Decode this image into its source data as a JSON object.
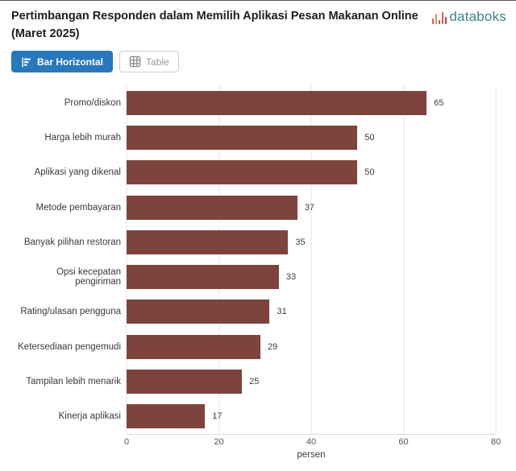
{
  "header": {
    "title": "Pertimbangan Responden dalam Memilih Aplikasi Pesan Makanan Online (Maret 2025)",
    "brand": "databoks"
  },
  "toolbar": {
    "bar_horizontal_label": "Bar Horizontal",
    "table_label": "Table"
  },
  "chart_data": {
    "type": "bar",
    "orientation": "horizontal",
    "title": "Pertimbangan Responden dalam Memilih Aplikasi Pesan Makanan Online (Maret 2025)",
    "categories": [
      "Promo/diskon",
      "Harga lebih murah",
      "Aplikasi yang dikenal",
      "Metode pembayaran",
      "Banyak pilihan restoran",
      "Opsi kecepatan pengiriman",
      "Rating/ulasan pengguna",
      "Ketersediaan pengemudi",
      "Tampilan lebih menarik",
      "Kinerja aplikasi"
    ],
    "values": [
      65,
      50,
      50,
      37,
      35,
      33,
      31,
      29,
      25,
      17
    ],
    "xlabel": "persen",
    "ylabel": "",
    "xlim": [
      0,
      80
    ],
    "xticks": [
      0,
      20,
      40,
      60,
      80
    ],
    "grid": true,
    "legend": "none",
    "bar_color": "#7E443C"
  },
  "colors": {
    "accent_blue": "#2878BE",
    "brand_teal": "#3B8486",
    "bar_maroon": "#7E443C",
    "logo_bar_colors": [
      "#E05B4B",
      "#EE8A4F",
      "#D94343",
      "#E05B4B",
      "#C93A3A"
    ]
  }
}
